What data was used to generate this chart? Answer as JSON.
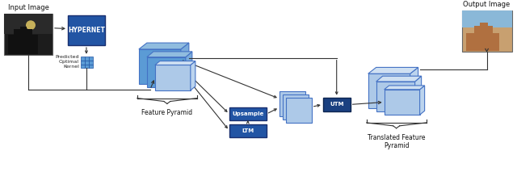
{
  "bg_color": "#ffffff",
  "light_blue": "#adc9e8",
  "medium_blue": "#5b9bd5",
  "dark_blue": "#2255a4",
  "darker_blue": "#1a4080",
  "border_blue": "#4472c4",
  "gray_line": "#555555",
  "input_label": "Input Image",
  "output_label": "Output Image",
  "hypernet_label": "HYPERNET",
  "upsample_label": "Upsample",
  "ltm_label": "LTM",
  "utm_label": "UTM",
  "fp_label": "Feature Pyramid",
  "tfp_label": "Translated Feature\nPyramid",
  "kernel_label": "Predicted\nOptimal\nKernel"
}
